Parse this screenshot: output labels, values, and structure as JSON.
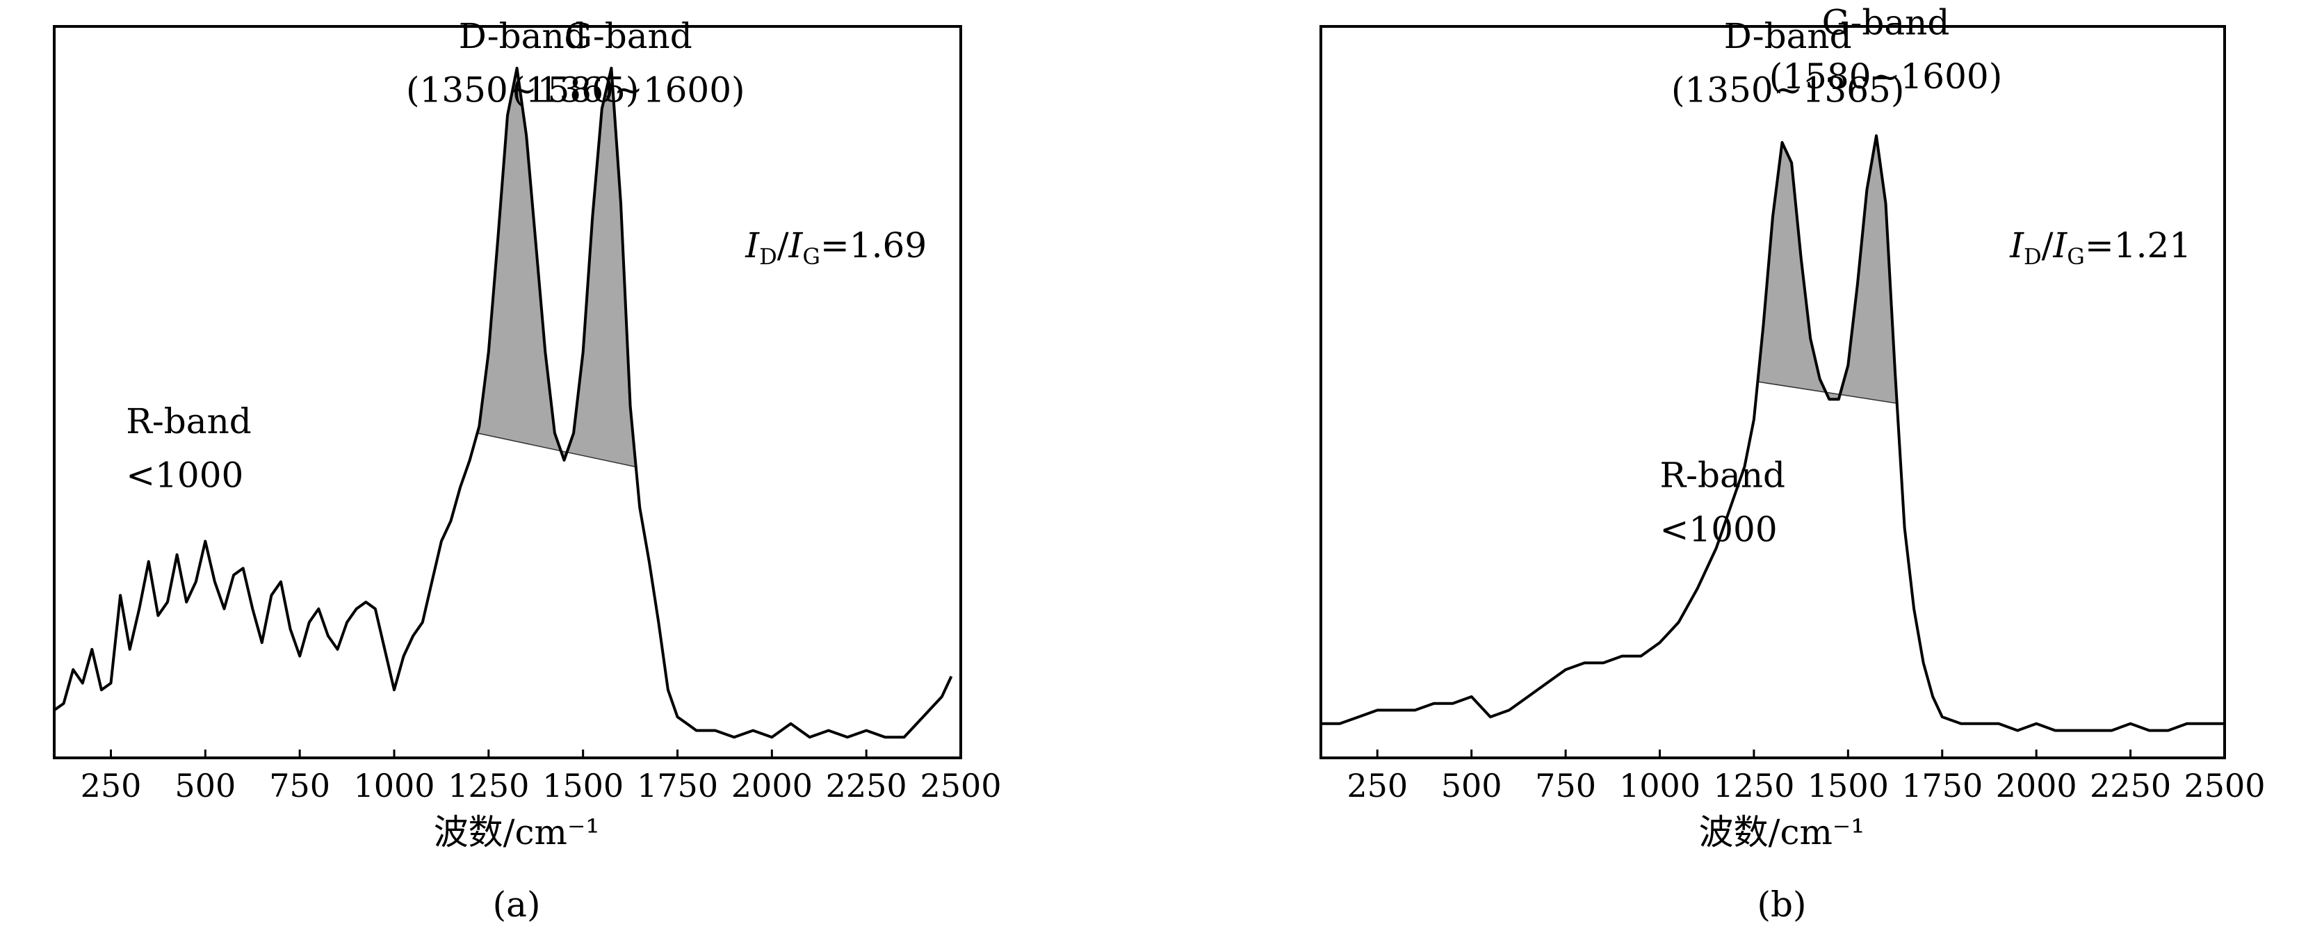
{
  "chart_data": [
    {
      "type": "line",
      "panel_label": "(a)",
      "xlabel": "波数/cm⁻¹",
      "ylabel": "",
      "xlim": [
        100,
        2500
      ],
      "ylim": [
        0,
        1
      ],
      "x_ticks": [
        250,
        500,
        750,
        1000,
        1250,
        1500,
        1750,
        2000,
        2250,
        2500
      ],
      "y_ticks": [],
      "grid": false,
      "x": [
        100,
        125,
        150,
        175,
        200,
        225,
        250,
        275,
        300,
        325,
        350,
        375,
        400,
        425,
        450,
        475,
        500,
        525,
        550,
        575,
        600,
        625,
        650,
        675,
        700,
        725,
        750,
        775,
        800,
        825,
        850,
        875,
        900,
        925,
        950,
        975,
        1000,
        1025,
        1050,
        1075,
        1100,
        1125,
        1150,
        1175,
        1200,
        1225,
        1250,
        1275,
        1300,
        1325,
        1350,
        1375,
        1400,
        1425,
        1450,
        1475,
        1500,
        1525,
        1550,
        1575,
        1600,
        1625,
        1650,
        1675,
        1700,
        1725,
        1750,
        1775,
        1800,
        1850,
        1900,
        1950,
        2000,
        2050,
        2100,
        2150,
        2200,
        2250,
        2300,
        2350,
        2400,
        2450,
        2475
      ],
      "y": [
        0.05,
        0.06,
        0.11,
        0.09,
        0.14,
        0.08,
        0.09,
        0.22,
        0.14,
        0.2,
        0.27,
        0.19,
        0.21,
        0.28,
        0.21,
        0.24,
        0.3,
        0.24,
        0.2,
        0.25,
        0.26,
        0.2,
        0.15,
        0.22,
        0.24,
        0.17,
        0.13,
        0.18,
        0.2,
        0.16,
        0.14,
        0.18,
        0.2,
        0.21,
        0.2,
        0.14,
        0.08,
        0.13,
        0.16,
        0.18,
        0.24,
        0.3,
        0.33,
        0.38,
        0.42,
        0.47,
        0.58,
        0.75,
        0.93,
        1.0,
        0.9,
        0.74,
        0.58,
        0.46,
        0.42,
        0.46,
        0.58,
        0.78,
        0.94,
        1.0,
        0.8,
        0.5,
        0.35,
        0.27,
        0.18,
        0.08,
        0.04,
        0.03,
        0.02,
        0.02,
        0.01,
        0.02,
        0.01,
        0.03,
        0.01,
        0.02,
        0.01,
        0.02,
        0.01,
        0.01,
        0.04,
        0.07,
        0.1
      ],
      "shaded_peaks": [
        [
          1220,
          1640
        ]
      ],
      "annotations": [
        {
          "text": "D-band",
          "x": 1340,
          "y": 1.03
        },
        {
          "text": "(1350~1365)",
          "x": 1340,
          "y": 0.95
        },
        {
          "text": "G-band",
          "x": 1620,
          "y": 1.03
        },
        {
          "text": "(1580~1600)",
          "x": 1620,
          "y": 0.95
        },
        {
          "text": "R-band",
          "x": 290,
          "y": 0.46
        },
        {
          "text": "<1000",
          "x": 290,
          "y": 0.38
        }
      ],
      "ratio_text": {
        "i1": "I",
        "s1": "D",
        "slash": "/",
        "i2": "I",
        "s2": "G",
        "value": "=1.69",
        "x": 1930,
        "y": 0.72
      }
    },
    {
      "type": "line",
      "panel_label": "(b)",
      "xlabel": "波数/cm⁻¹",
      "ylabel": "",
      "xlim": [
        100,
        2500
      ],
      "ylim": [
        0,
        1
      ],
      "x_ticks": [
        250,
        500,
        750,
        1000,
        1250,
        1500,
        1750,
        2000,
        2250,
        2500
      ],
      "y_ticks": [],
      "grid": false,
      "x": [
        100,
        150,
        200,
        250,
        300,
        350,
        400,
        450,
        500,
        550,
        600,
        650,
        700,
        750,
        800,
        850,
        900,
        950,
        1000,
        1050,
        1100,
        1150,
        1200,
        1225,
        1250,
        1275,
        1300,
        1325,
        1350,
        1375,
        1400,
        1425,
        1450,
        1475,
        1500,
        1525,
        1550,
        1575,
        1600,
        1625,
        1650,
        1675,
        1700,
        1725,
        1750,
        1800,
        1850,
        1900,
        1950,
        2000,
        2050,
        2100,
        2150,
        2200,
        2250,
        2300,
        2350,
        2400,
        2450,
        2500
      ],
      "y": [
        0.03,
        0.03,
        0.04,
        0.05,
        0.05,
        0.05,
        0.06,
        0.06,
        0.07,
        0.04,
        0.05,
        0.07,
        0.09,
        0.11,
        0.12,
        0.12,
        0.13,
        0.13,
        0.15,
        0.18,
        0.23,
        0.29,
        0.37,
        0.41,
        0.48,
        0.62,
        0.78,
        0.89,
        0.86,
        0.72,
        0.6,
        0.54,
        0.51,
        0.51,
        0.56,
        0.68,
        0.82,
        0.9,
        0.8,
        0.55,
        0.32,
        0.2,
        0.12,
        0.07,
        0.04,
        0.03,
        0.03,
        0.03,
        0.02,
        0.03,
        0.02,
        0.02,
        0.02,
        0.02,
        0.03,
        0.02,
        0.02,
        0.03,
        0.03,
        0.03
      ],
      "shaded_peaks": [
        [
          1260,
          1630
        ]
      ],
      "annotations": [
        {
          "text": "D-band",
          "x": 1340,
          "y": 1.03
        },
        {
          "text": "(1350~1365)",
          "x": 1340,
          "y": 0.95
        },
        {
          "text": "G-band",
          "x": 1600,
          "y": 1.05
        },
        {
          "text": "(1580~1600)",
          "x": 1600,
          "y": 0.97
        },
        {
          "text": "R-band",
          "x": 1000,
          "y": 0.38
        },
        {
          "text": "<1000",
          "x": 1000,
          "y": 0.3
        }
      ],
      "ratio_text": {
        "i1": "I",
        "s1": "D",
        "slash": "/",
        "i2": "I",
        "s2": "G",
        "value": "=1.21",
        "x": 1930,
        "y": 0.72
      }
    }
  ]
}
